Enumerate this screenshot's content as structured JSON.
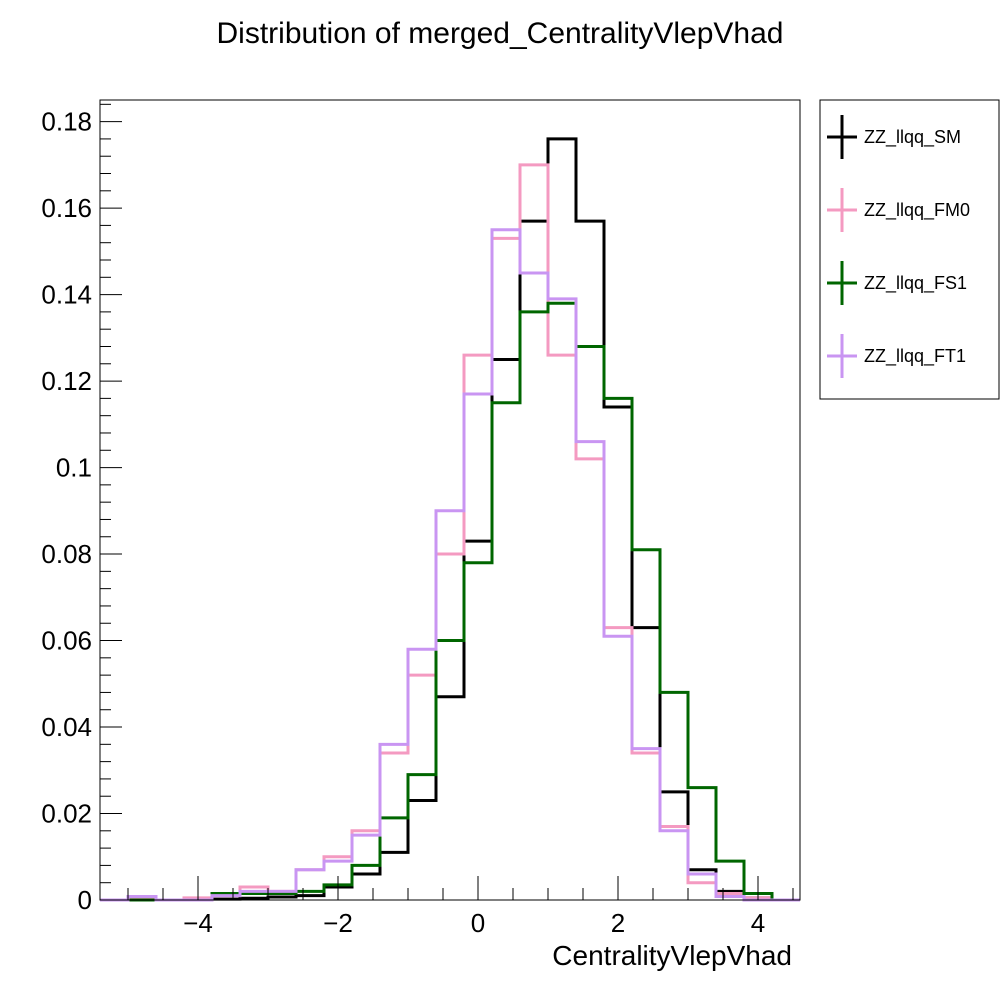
{
  "colors": {
    "ZZ_llqq_SM": "#000000",
    "ZZ_llqq_FM0": "#f49ac1",
    "ZZ_llqq_FS1": "#006600",
    "ZZ_llqq_FT1": "#c995f2"
  },
  "chart_data": {
    "type": "histogram",
    "title": "Distribution of merged_CentralityVlepVhad",
    "xlabel": "CentralityVlepVhad",
    "ylabel": "",
    "xlim": [
      -5.4,
      4.6
    ],
    "ylim": [
      0,
      0.185
    ],
    "x_ticks": [
      -4,
      -2,
      0,
      2,
      4
    ],
    "x_tick_labels": [
      "−4",
      "−2",
      "0",
      "2",
      "4"
    ],
    "y_ticks": [
      0,
      0.02,
      0.04,
      0.06,
      0.08,
      0.1,
      0.12,
      0.14,
      0.16,
      0.18
    ],
    "y_tick_labels": [
      "0",
      "0.02",
      "0.04",
      "0.06",
      "0.08",
      "0.1",
      "0.12",
      "0.14",
      "0.16",
      "0.18"
    ],
    "bin_edges": [
      -5.4,
      -5.0,
      -4.6,
      -4.2,
      -3.8,
      -3.4,
      -3.0,
      -2.6,
      -2.2,
      -1.8,
      -1.4,
      -1.0,
      -0.6,
      -0.2,
      0.2,
      0.6,
      1.0,
      1.4,
      1.8,
      2.2,
      2.6,
      3.0,
      3.4,
      3.8,
      4.2,
      4.6
    ],
    "grid": false,
    "legend_position": "outside-top-right",
    "series": [
      {
        "name": "ZZ_llqq_SM",
        "color": "#000000",
        "values": [
          0,
          0,
          0,
          0,
          0.0002,
          0.0004,
          0.0007,
          0.001,
          0.003,
          0.006,
          0.011,
          0.023,
          0.047,
          0.083,
          0.125,
          0.157,
          0.176,
          0.157,
          0.114,
          0.063,
          0.025,
          0.007,
          0.002,
          0.0005,
          0
        ]
      },
      {
        "name": "ZZ_llqq_FM0",
        "color": "#f49ac1",
        "values": [
          0,
          0.0003,
          0,
          0.0005,
          0.001,
          0.003,
          0.002,
          0.007,
          0.01,
          0.016,
          0.034,
          0.052,
          0.08,
          0.126,
          0.153,
          0.17,
          0.126,
          0.102,
          0.063,
          0.034,
          0.017,
          0.004,
          0.0015,
          0.0005,
          0
        ]
      },
      {
        "name": "ZZ_llqq_FS1",
        "color": "#006600",
        "values": [
          0,
          0,
          0,
          0,
          0.0015,
          0.0015,
          0.0015,
          0.002,
          0.0035,
          0.008,
          0.019,
          0.029,
          0.06,
          0.078,
          0.115,
          0.136,
          0.138,
          0.128,
          0.116,
          0.081,
          0.048,
          0.026,
          0.009,
          0.0015,
          0
        ]
      },
      {
        "name": "ZZ_llqq_FT1",
        "color": "#c995f2",
        "values": [
          0,
          0.0008,
          0,
          0,
          0.001,
          0.002,
          0.002,
          0.007,
          0.009,
          0.015,
          0.036,
          0.058,
          0.09,
          0.117,
          0.155,
          0.145,
          0.139,
          0.106,
          0.061,
          0.035,
          0.016,
          0.006,
          0.0008,
          0,
          0
        ]
      }
    ]
  }
}
